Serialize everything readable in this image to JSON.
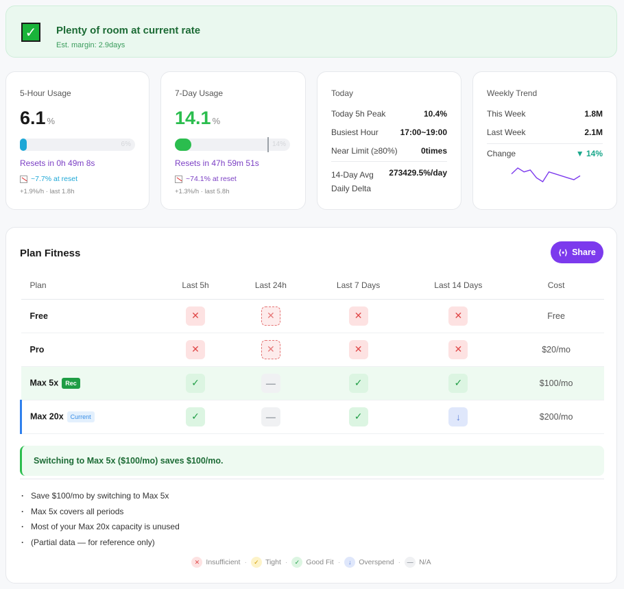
{
  "banner": {
    "title": "Plenty of room at current rate",
    "subtitle": "Est. margin: 2.9days"
  },
  "five_hour": {
    "label": "5-Hour Usage",
    "value": "6.1",
    "unit": "%",
    "bar_value": 6.1,
    "bar_text": "6%",
    "resets": "Resets in 0h 49m 8s",
    "at_reset": "~7.7% at reset",
    "rate": "+1.9%/h · last 1.8h"
  },
  "seven_day": {
    "label": "7-Day Usage",
    "value": "14.1",
    "unit": "%",
    "bar_value": 14.1,
    "bar_text": "14%",
    "resets": "Resets in 47h 59m 51s",
    "at_reset": "~74.1% at reset",
    "rate": "+1.3%/h · last 5.8h"
  },
  "today": {
    "label": "Today",
    "rows": [
      {
        "k": "Today 5h Peak",
        "v": "10.4%"
      },
      {
        "k": "Busiest Hour",
        "v": "17:00~19:00"
      },
      {
        "k": "Near Limit (≥80%)",
        "v": "0times"
      }
    ],
    "daily_delta_k": "14-Day Avg\nDaily Delta",
    "daily_delta_v": "273429.5%/day"
  },
  "weekly": {
    "label": "Weekly Trend",
    "this_week_k": "This Week",
    "this_week_v": "1.8M",
    "last_week_k": "Last Week",
    "last_week_v": "2.1M",
    "change_k": "Change",
    "change_v": "▼ 14%",
    "sparkline": [
      6,
      3,
      5,
      4,
      8,
      10,
      5,
      6,
      7,
      8,
      9,
      7
    ]
  },
  "plan_fitness": {
    "title": "Plan Fitness",
    "share_label": "Share",
    "headers": [
      "Plan",
      "Last 5h",
      "Last 24h",
      "Last 7 Days",
      "Last 14 Days",
      "Cost"
    ],
    "rows": [
      {
        "plan": "Free",
        "tag": "",
        "cells": [
          "x",
          "xd",
          "x",
          "x"
        ],
        "cost": "Free"
      },
      {
        "plan": "Pro",
        "tag": "",
        "cells": [
          "x",
          "xd",
          "x",
          "x"
        ],
        "cost": "$20/mo"
      },
      {
        "plan": "Max 5x",
        "tag": "Rec",
        "cells": [
          "ok",
          "na",
          "ok",
          "ok"
        ],
        "cost": "$100/mo"
      },
      {
        "plan": "Max 20x",
        "tag": "Current",
        "cells": [
          "ok",
          "na",
          "ok",
          "down"
        ],
        "cost": "$200/mo"
      }
    ],
    "savings": "Switching to Max 5x ($100/mo) saves $100/mo.",
    "bullets": [
      "Save $100/mo by switching to Max 5x",
      "Max 5x covers all periods",
      "Most of your Max 20x capacity is unused",
      "(Partial data — for reference only)"
    ],
    "legend": [
      "Insufficient",
      "Tight",
      "Good Fit",
      "Overspend",
      "N/A"
    ]
  },
  "colors": {
    "accent": "#7c3aed",
    "good": "#2bbd4e",
    "bad": "#e04848",
    "reset_text": "#7b3fc4"
  }
}
